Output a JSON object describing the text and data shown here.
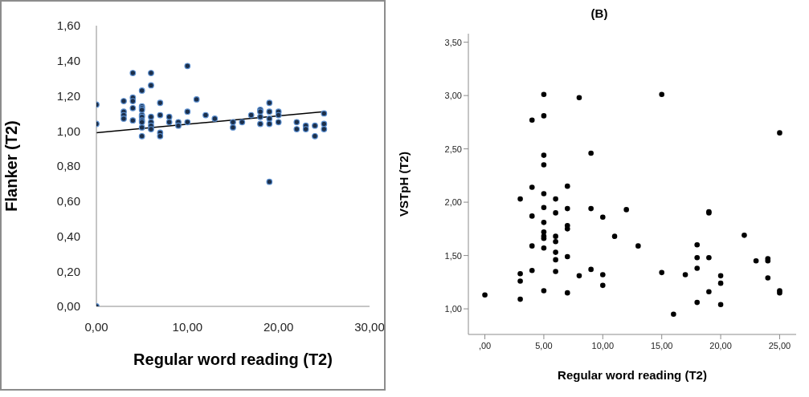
{
  "chart_data": [
    {
      "type": "scatter",
      "xlabel": "Regular word reading (T2)",
      "ylabel": "Flanker (T2)",
      "marker": "circle",
      "grid": false,
      "xlim": [
        0,
        30
      ],
      "xticks": [
        {
          "value": 0,
          "label": "0,00"
        },
        {
          "value": 10,
          "label": "10,00"
        },
        {
          "value": 20,
          "label": "20,00"
        },
        {
          "value": 30,
          "label": "30,00"
        }
      ],
      "ylim": [
        0,
        1.6
      ],
      "yticks": [
        {
          "value": 0,
          "label": "0,00"
        },
        {
          "value": 0.2,
          "label": "0,20"
        },
        {
          "value": 0.4,
          "label": "0,40"
        },
        {
          "value": 0.6,
          "label": "0,60"
        },
        {
          "value": 0.8,
          "label": "0,80"
        },
        {
          "value": 1,
          "label": "1,00"
        },
        {
          "value": 1.2,
          "label": "1,20"
        },
        {
          "value": 1.4,
          "label": "1,40"
        },
        {
          "value": 1.6,
          "label": "1,60"
        }
      ],
      "series": [
        {
          "color": "#1c2f4a",
          "x": [
            0,
            0,
            0,
            3,
            3,
            3,
            3,
            4,
            4,
            4,
            4,
            4,
            5,
            5,
            5,
            5,
            5,
            5,
            5,
            5,
            5,
            5,
            6,
            6,
            6,
            6,
            6,
            6,
            7,
            7,
            7,
            7,
            8,
            8,
            9,
            9,
            10,
            10,
            10,
            11,
            12,
            13,
            15,
            15,
            16,
            17,
            18,
            18,
            18,
            18,
            19,
            19,
            19,
            19,
            19,
            20,
            20,
            20,
            22,
            22,
            23,
            23,
            24,
            24,
            25,
            25,
            25
          ],
          "values": [
            1.15,
            1.04,
            0,
            1.17,
            1.11,
            1.09,
            1.07,
            1.33,
            1.19,
            1.17,
            1.13,
            1.06,
            1.23,
            1.14,
            1.13,
            1.12,
            1.09,
            1.08,
            1.06,
            1.05,
            1.02,
            0.97,
            1.33,
            1.26,
            1.08,
            1.05,
            1.03,
            1.01,
            1.16,
            1.09,
            0.99,
            0.97,
            1.08,
            1.05,
            1.05,
            1.03,
            1.37,
            1.11,
            1.05,
            1.18,
            1.09,
            1.07,
            1.05,
            1.02,
            1.05,
            1.09,
            1.12,
            1.11,
            1.08,
            1.04,
            1.16,
            1.11,
            1.07,
            1.04,
            0.71,
            1.11,
            1.09,
            1.05,
            1.05,
            1.01,
            1.03,
            1.01,
            1.03,
            0.97,
            1.1,
            1.04,
            1.01
          ]
        },
        {
          "type": "line",
          "marker": "none",
          "color": "#000000",
          "x": [
            0,
            25
          ],
          "values": [
            0.99,
            1.11
          ]
        }
      ]
    },
    {
      "type": "scatter",
      "title": "(B)",
      "xlabel": "Regular word reading (T2)",
      "ylabel": "VSTpH (T2)",
      "marker": "circle",
      "grid": false,
      "xlim": [
        -1.4,
        26.4
      ],
      "xticks": [
        {
          "value": 0,
          "label": ",00"
        },
        {
          "value": 5,
          "label": "5,00"
        },
        {
          "value": 10,
          "label": "10,00"
        },
        {
          "value": 15,
          "label": "15,00"
        },
        {
          "value": 20,
          "label": "20,00"
        },
        {
          "value": 25,
          "label": "25,00"
        }
      ],
      "ylim": [
        0.76,
        3.58
      ],
      "yticks": [
        {
          "value": 1,
          "label": "1,00"
        },
        {
          "value": 1.5,
          "label": "1,50"
        },
        {
          "value": 2,
          "label": "2,00"
        },
        {
          "value": 2.5,
          "label": "2,50"
        },
        {
          "value": 3,
          "label": "3,00"
        },
        {
          "value": 3.5,
          "label": "3,50"
        }
      ],
      "series": [
        {
          "color": "#000000",
          "x": [
            0,
            3,
            3,
            3,
            3,
            4,
            4,
            4,
            4,
            4,
            5,
            5,
            5,
            5,
            5,
            5,
            5,
            5,
            5,
            5,
            5,
            5,
            6,
            6,
            6,
            6,
            6,
            6,
            6,
            7,
            7,
            7,
            7,
            7,
            7,
            8,
            8,
            9,
            9,
            9,
            10,
            10,
            10,
            11,
            12,
            13,
            15,
            15,
            16,
            17,
            18,
            18,
            18,
            18,
            19,
            19,
            19,
            19,
            20,
            20,
            20,
            22,
            23,
            24,
            24,
            24,
            25,
            25,
            25
          ],
          "values": [
            1.13,
            2.03,
            1.33,
            1.26,
            1.09,
            2.77,
            2.14,
            1.87,
            1.59,
            1.36,
            3.01,
            2.81,
            2.44,
            2.35,
            2.08,
            1.95,
            1.81,
            1.72,
            1.68,
            1.66,
            1.57,
            1.17,
            2.03,
            1.9,
            1.68,
            1.63,
            1.53,
            1.46,
            1.35,
            2.15,
            1.94,
            1.78,
            1.75,
            1.49,
            1.15,
            2.98,
            1.31,
            2.46,
            1.94,
            1.37,
            1.86,
            1.32,
            1.22,
            1.68,
            1.93,
            1.59,
            3.01,
            1.34,
            0.95,
            1.32,
            1.6,
            1.48,
            1.38,
            1.06,
            1.91,
            1.9,
            1.48,
            1.16,
            1.31,
            1.24,
            1.04,
            1.69,
            1.45,
            1.47,
            1.45,
            1.29,
            2.65,
            1.17,
            1.15
          ]
        }
      ]
    }
  ]
}
